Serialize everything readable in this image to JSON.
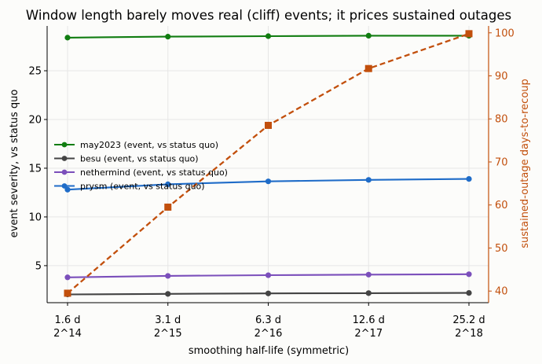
{
  "chart_data": {
    "type": "line",
    "title": "Window length barely moves real (cliff) events; it prices sustained outages",
    "xlabel": "smoothing half-life (symmetric)",
    "ylabel_left": "event severity, vs status quo",
    "ylabel_right": "sustained-outage days-to-recoup",
    "x_ticks": [
      {
        "top": "1.6 d",
        "bottom": "2^14"
      },
      {
        "top": "3.1 d",
        "bottom": "2^15"
      },
      {
        "top": "6.3 d",
        "bottom": "2^16"
      },
      {
        "top": "12.6 d",
        "bottom": "2^17"
      },
      {
        "top": "25.2 d",
        "bottom": "2^18"
      }
    ],
    "y_left": {
      "lim": [
        1.2,
        29.6
      ],
      "ticks": [
        5,
        10,
        15,
        20,
        25
      ]
    },
    "y_right": {
      "lim": [
        37.3,
        101.6
      ],
      "ticks": [
        40,
        50,
        60,
        70,
        80,
        90,
        100
      ]
    },
    "grid": true,
    "legend_position": "center-left",
    "series": [
      {
        "name": "may2023 (event, vs status quo)",
        "axis": "left",
        "color": "#117d11",
        "marker": "circle",
        "dash": false,
        "values": [
          28.4,
          28.5,
          28.55,
          28.6,
          28.6
        ]
      },
      {
        "name": "besu (event, vs status quo)",
        "axis": "left",
        "color": "#444444",
        "marker": "circle",
        "dash": false,
        "values": [
          2.05,
          2.1,
          2.15,
          2.18,
          2.2
        ]
      },
      {
        "name": "nethermind (event, vs status quo)",
        "axis": "left",
        "color": "#7b4fbb",
        "marker": "circle",
        "dash": false,
        "values": [
          3.8,
          3.95,
          4.02,
          4.08,
          4.12
        ]
      },
      {
        "name": "prysm (event, vs status quo)",
        "axis": "left",
        "color": "#1f6cc8",
        "marker": "circle",
        "dash": false,
        "values": [
          12.8,
          13.35,
          13.65,
          13.8,
          13.9
        ]
      },
      {
        "name": "",
        "axis": "right",
        "color": "#c24f0c",
        "marker": "square",
        "dash": true,
        "values": [
          39.5,
          59.5,
          78.5,
          91.7,
          99.8
        ]
      }
    ],
    "colors": {
      "right_axis": "#c24f0c",
      "grid": "#e6e6e6",
      "axis": "#000000"
    }
  }
}
